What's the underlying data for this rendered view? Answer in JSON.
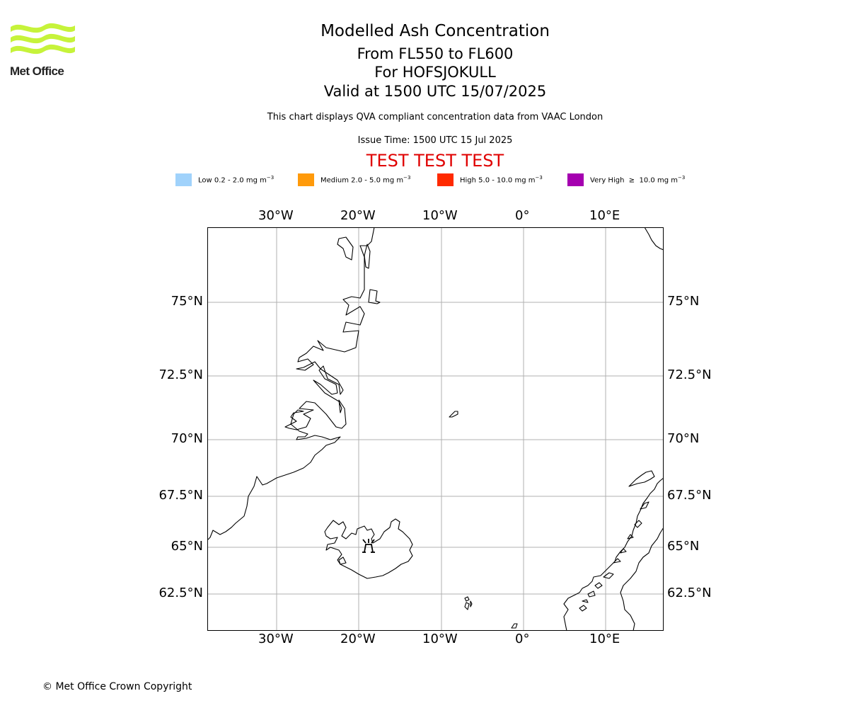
{
  "logo": {
    "text": "Met Office",
    "color": "#c6f33a"
  },
  "header": {
    "title": "Modelled Ash Concentration",
    "level_range": "From FL550 to FL600",
    "volcano": "For HOFSJOKULL",
    "valid_time": "Valid at 1500 UTC 15/07/2025",
    "description": "This chart displays QVA compliant concentration data from VAAC London",
    "issue_time": "Issue Time: 1500 UTC 15 Jul 2025",
    "test_banner": "TEST TEST TEST"
  },
  "legend": [
    {
      "label": "Low 0.2 - 2.0 mg m",
      "unit_sup": "−3",
      "color": "#a0d2fb"
    },
    {
      "label": "Medium 2.0 - 5.0 mg m",
      "unit_sup": "−3",
      "color": "#ff9a0a"
    },
    {
      "label": "High 5.0 - 10.0 mg m",
      "unit_sup": "−3",
      "color": "#ff2a00"
    },
    {
      "label": "Very High  ≥  10.0 mg m",
      "unit_sup": "−3",
      "color": "#a500b0"
    }
  ],
  "map": {
    "lon_ticks": [
      "30°W",
      "20°W",
      "10°W",
      "0°",
      "10°E"
    ],
    "lat_ticks": [
      "75°N",
      "72.5°N",
      "70°N",
      "67.5°N",
      "65°N",
      "62.5°N"
    ],
    "volcano_marker": "volcano-icon",
    "gridline_color": "#b0b0b0"
  },
  "footer": {
    "copyright": "© Met Office Crown Copyright"
  }
}
